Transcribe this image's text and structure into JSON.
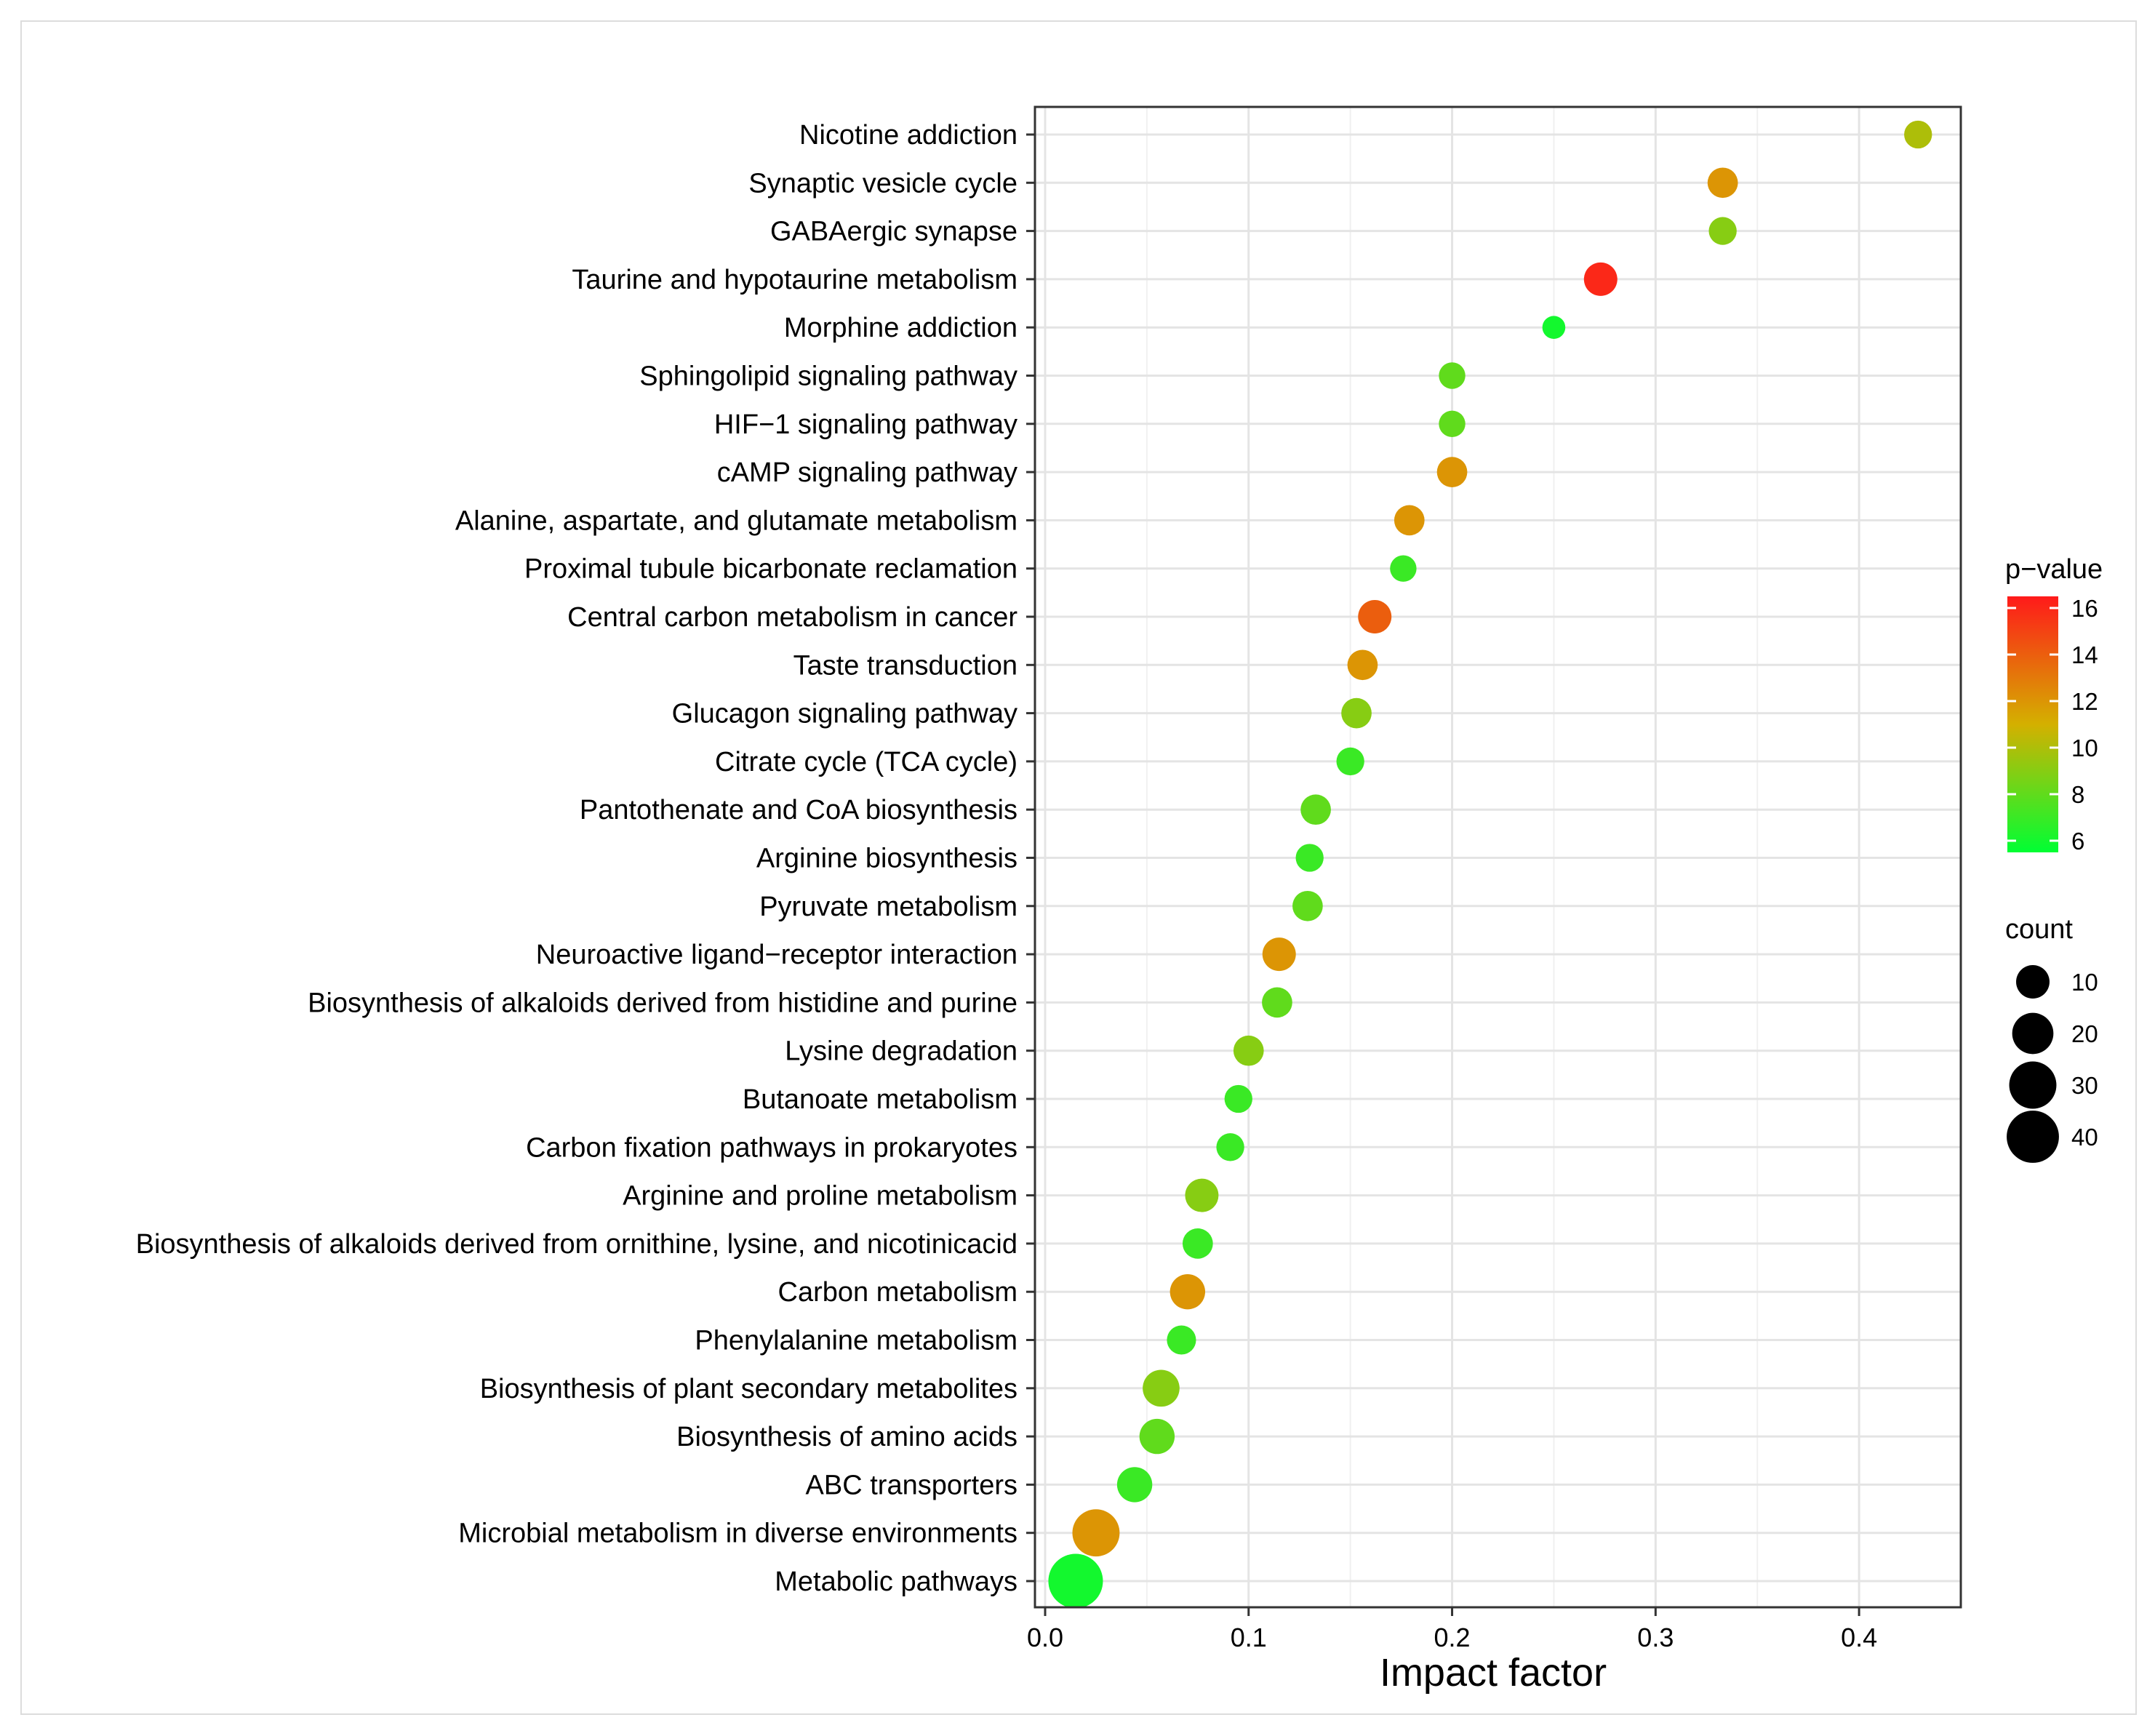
{
  "chart_data": {
    "type": "scatter",
    "title": "",
    "xlabel": "Impact factor",
    "ylabel": "",
    "xlim": [
      -0.005,
      0.45
    ],
    "xticks": [
      0,
      0.1,
      0.2,
      0.3,
      0.4
    ],
    "xtick_labels": [
      "0.0",
      "0.1",
      "0.2",
      "0.3",
      "0.4"
    ],
    "grid": true,
    "categories": [
      "Nicotine addiction",
      "Synaptic vesicle cycle",
      "GABAergic synapse",
      "Taurine and hypotaurine metabolism",
      "Morphine addiction",
      "Sphingolipid signaling pathway",
      "HIF−1 signaling pathway",
      "cAMP signaling pathway",
      "Alanine, aspartate, and glutamate metabolism",
      "Proximal tubule bicarbonate reclamation",
      "Central carbon metabolism in cancer",
      "Taste transduction",
      "Glucagon signaling pathway",
      "Citrate cycle (TCA cycle)",
      "Pantothenate and CoA biosynthesis",
      "Arginine biosynthesis",
      "Pyruvate metabolism",
      "Neuroactive ligand−receptor interaction",
      "Biosynthesis of alkaloids derived from histidine and purine",
      "Lysine degradation",
      "Butanoate metabolism",
      "Carbon fixation pathways in prokaryotes",
      "Arginine and proline metabolism",
      "Biosynthesis of alkaloids derived from ornithine, lysine, and nicotinicacid",
      "Carbon metabolism",
      "Phenylalanine metabolism",
      "Biosynthesis of plant secondary metabolites",
      "Biosynthesis of amino acids",
      "ABC transporters",
      "Microbial metabolism in diverse environments",
      "Metabolic pathways"
    ],
    "impact_factor": [
      0.429,
      0.333,
      0.333,
      0.273,
      0.25,
      0.2,
      0.2,
      0.2,
      0.179,
      0.176,
      0.162,
      0.156,
      0.153,
      0.15,
      0.133,
      0.13,
      0.129,
      0.115,
      0.114,
      0.1,
      0.095,
      0.091,
      0.077,
      0.075,
      0.07,
      0.067,
      0.057,
      0.055,
      0.044,
      0.025,
      0.015
    ],
    "p_value": [
      10,
      12,
      9,
      16,
      6,
      8,
      8,
      12,
      12,
      7,
      14,
      12,
      9,
      7,
      8,
      7,
      8,
      12,
      8,
      9,
      7,
      7,
      9,
      7,
      12,
      7,
      9,
      8,
      7,
      12,
      6
    ],
    "count": [
      5,
      7,
      5,
      10,
      2,
      4,
      4,
      7,
      7,
      4,
      10,
      7,
      7,
      5,
      7,
      5,
      7,
      10,
      7,
      7,
      5,
      5,
      10,
      7,
      12,
      6,
      14,
      12,
      12,
      30,
      45
    ],
    "color_legend": {
      "title": "p−value",
      "range": [
        5.5,
        16.5
      ],
      "ticks": [
        6,
        8,
        10,
        12,
        14,
        16
      ],
      "tick_labels": [
        "6",
        "8",
        "10",
        "12",
        "14",
        "16"
      ],
      "low_color": "#00ff33",
      "high_color": "#ff1a1a"
    },
    "size_legend": {
      "title": "count",
      "values": [
        10,
        20,
        30,
        40
      ],
      "labels": [
        "10",
        "20",
        "30",
        "40"
      ]
    },
    "legend_position": "right"
  }
}
